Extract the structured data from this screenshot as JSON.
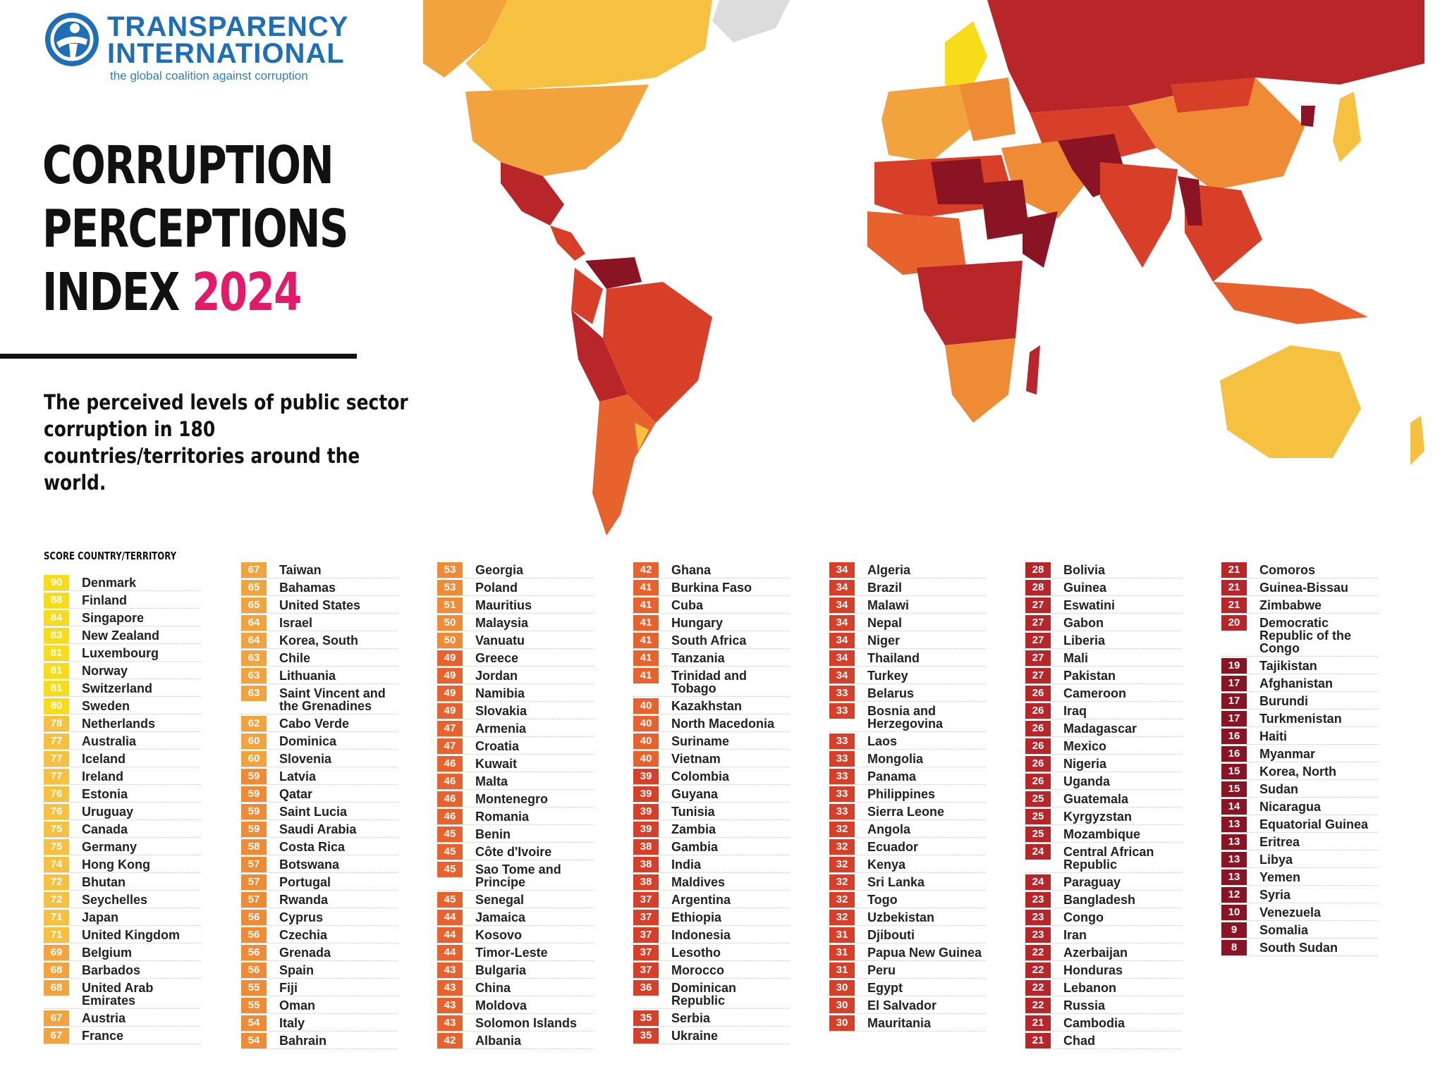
{
  "logo": {
    "line1": "TRANSPARENCY",
    "line2": "INTERNATIONAL",
    "tagline": "the global coalition against corruption"
  },
  "title": {
    "line1": "CORRUPTION",
    "line2": "PERCEPTIONS",
    "line3_prefix": "INDEX",
    "year": "2024"
  },
  "subtitle": "The perceived levels of public sector corruption in 180 countries/territories around the world.",
  "table_header": "SCORE  COUNTRY/TERRITORY",
  "colors": {
    "score_90_80": "#f7dc1a",
    "score_79_70": "#f6c140",
    "score_69_60": "#f3a33d",
    "score_59_50": "#ef8a35",
    "score_49_40": "#e8622e",
    "score_39_30": "#d83f29",
    "score_29_20": "#b8262a",
    "score_19_0": "#8a1424",
    "accent_year": "#e3196a",
    "logo_blue": "#1e6fb6"
  },
  "columns": [
    [
      {
        "score": "90",
        "name": "Denmark"
      },
      {
        "score": "88",
        "name": "Finland"
      },
      {
        "score": "84",
        "name": "Singapore"
      },
      {
        "score": "83",
        "name": "New Zealand"
      },
      {
        "score": "81",
        "name": "Luxembourg"
      },
      {
        "score": "81",
        "name": "Norway"
      },
      {
        "score": "81",
        "name": "Switzerland"
      },
      {
        "score": "80",
        "name": "Sweden"
      },
      {
        "score": "78",
        "name": "Netherlands"
      },
      {
        "score": "77",
        "name": "Australia"
      },
      {
        "score": "77",
        "name": "Iceland"
      },
      {
        "score": "77",
        "name": "Ireland"
      },
      {
        "score": "76",
        "name": "Estonia"
      },
      {
        "score": "76",
        "name": "Uruguay"
      },
      {
        "score": "75",
        "name": "Canada"
      },
      {
        "score": "75",
        "name": "Germany"
      },
      {
        "score": "74",
        "name": "Hong Kong"
      },
      {
        "score": "72",
        "name": "Bhutan"
      },
      {
        "score": "72",
        "name": "Seychelles"
      },
      {
        "score": "71",
        "name": "Japan"
      },
      {
        "score": "71",
        "name": "United Kingdom"
      },
      {
        "score": "69",
        "name": "Belgium"
      },
      {
        "score": "68",
        "name": "Barbados"
      },
      {
        "score": "68",
        "name": "United Arab Emirates"
      },
      {
        "score": "67",
        "name": "Austria"
      },
      {
        "score": "67",
        "name": "France"
      }
    ],
    [
      {
        "score": "67",
        "name": "Taiwan"
      },
      {
        "score": "65",
        "name": "Bahamas"
      },
      {
        "score": "65",
        "name": "United States"
      },
      {
        "score": "64",
        "name": "Israel"
      },
      {
        "score": "64",
        "name": "Korea, South"
      },
      {
        "score": "63",
        "name": "Chile"
      },
      {
        "score": "63",
        "name": "Lithuania"
      },
      {
        "score": "63",
        "name": "Saint Vincent and the Grenadines"
      },
      {
        "score": "62",
        "name": "Cabo Verde"
      },
      {
        "score": "60",
        "name": "Dominica"
      },
      {
        "score": "60",
        "name": "Slovenia"
      },
      {
        "score": "59",
        "name": "Latvia"
      },
      {
        "score": "59",
        "name": "Qatar"
      },
      {
        "score": "59",
        "name": "Saint Lucia"
      },
      {
        "score": "59",
        "name": "Saudi Arabia"
      },
      {
        "score": "58",
        "name": "Costa Rica"
      },
      {
        "score": "57",
        "name": "Botswana"
      },
      {
        "score": "57",
        "name": "Portugal"
      },
      {
        "score": "57",
        "name": "Rwanda"
      },
      {
        "score": "56",
        "name": "Cyprus"
      },
      {
        "score": "56",
        "name": "Czechia"
      },
      {
        "score": "56",
        "name": "Grenada"
      },
      {
        "score": "56",
        "name": "Spain"
      },
      {
        "score": "55",
        "name": "Fiji"
      },
      {
        "score": "55",
        "name": "Oman"
      },
      {
        "score": "54",
        "name": "Italy"
      },
      {
        "score": "54",
        "name": "Bahrain"
      }
    ],
    [
      {
        "score": "53",
        "name": "Georgia"
      },
      {
        "score": "53",
        "name": "Poland"
      },
      {
        "score": "51",
        "name": "Mauritius"
      },
      {
        "score": "50",
        "name": "Malaysia"
      },
      {
        "score": "50",
        "name": "Vanuatu"
      },
      {
        "score": "49",
        "name": "Greece"
      },
      {
        "score": "49",
        "name": "Jordan"
      },
      {
        "score": "49",
        "name": "Namibia"
      },
      {
        "score": "49",
        "name": "Slovakia"
      },
      {
        "score": "47",
        "name": "Armenia"
      },
      {
        "score": "47",
        "name": "Croatia"
      },
      {
        "score": "46",
        "name": "Kuwait"
      },
      {
        "score": "46",
        "name": "Malta"
      },
      {
        "score": "46",
        "name": "Montenegro"
      },
      {
        "score": "46",
        "name": "Romania"
      },
      {
        "score": "45",
        "name": "Benin"
      },
      {
        "score": "45",
        "name": "Côte d'Ivoire"
      },
      {
        "score": "45",
        "name": "Sao Tome and Principe"
      },
      {
        "score": "45",
        "name": "Senegal"
      },
      {
        "score": "44",
        "name": "Jamaica"
      },
      {
        "score": "44",
        "name": "Kosovo"
      },
      {
        "score": "44",
        "name": "Timor-Leste"
      },
      {
        "score": "43",
        "name": "Bulgaria"
      },
      {
        "score": "43",
        "name": "China"
      },
      {
        "score": "43",
        "name": "Moldova"
      },
      {
        "score": "43",
        "name": "Solomon Islands"
      },
      {
        "score": "42",
        "name": "Albania"
      }
    ],
    [
      {
        "score": "42",
        "name": "Ghana"
      },
      {
        "score": "41",
        "name": "Burkina Faso"
      },
      {
        "score": "41",
        "name": "Cuba"
      },
      {
        "score": "41",
        "name": "Hungary"
      },
      {
        "score": "41",
        "name": "South Africa"
      },
      {
        "score": "41",
        "name": "Tanzania"
      },
      {
        "score": "41",
        "name": "Trinidad and Tobago"
      },
      {
        "score": "40",
        "name": "Kazakhstan"
      },
      {
        "score": "40",
        "name": "North Macedonia"
      },
      {
        "score": "40",
        "name": "Suriname"
      },
      {
        "score": "40",
        "name": "Vietnam"
      },
      {
        "score": "39",
        "name": "Colombia"
      },
      {
        "score": "39",
        "name": "Guyana"
      },
      {
        "score": "39",
        "name": "Tunisia"
      },
      {
        "score": "39",
        "name": "Zambia"
      },
      {
        "score": "38",
        "name": "Gambia"
      },
      {
        "score": "38",
        "name": "India"
      },
      {
        "score": "38",
        "name": "Maldives"
      },
      {
        "score": "37",
        "name": "Argentina"
      },
      {
        "score": "37",
        "name": "Ethiopia"
      },
      {
        "score": "37",
        "name": "Indonesia"
      },
      {
        "score": "37",
        "name": "Lesotho"
      },
      {
        "score": "37",
        "name": "Morocco"
      },
      {
        "score": "36",
        "name": "Dominican Republic"
      },
      {
        "score": "35",
        "name": "Serbia"
      },
      {
        "score": "35",
        "name": "Ukraine"
      }
    ],
    [
      {
        "score": "34",
        "name": "Algeria"
      },
      {
        "score": "34",
        "name": "Brazil"
      },
      {
        "score": "34",
        "name": "Malawi"
      },
      {
        "score": "34",
        "name": "Nepal"
      },
      {
        "score": "34",
        "name": "Niger"
      },
      {
        "score": "34",
        "name": "Thailand"
      },
      {
        "score": "34",
        "name": "Turkey"
      },
      {
        "score": "33",
        "name": "Belarus"
      },
      {
        "score": "33",
        "name": "Bosnia and Herzegovina"
      },
      {
        "score": "33",
        "name": "Laos"
      },
      {
        "score": "33",
        "name": "Mongolia"
      },
      {
        "score": "33",
        "name": "Panama"
      },
      {
        "score": "33",
        "name": "Philippines"
      },
      {
        "score": "33",
        "name": "Sierra Leone"
      },
      {
        "score": "32",
        "name": "Angola"
      },
      {
        "score": "32",
        "name": "Ecuador"
      },
      {
        "score": "32",
        "name": "Kenya"
      },
      {
        "score": "32",
        "name": "Sri Lanka"
      },
      {
        "score": "32",
        "name": "Togo"
      },
      {
        "score": "32",
        "name": "Uzbekistan"
      },
      {
        "score": "31",
        "name": "Djibouti"
      },
      {
        "score": "31",
        "name": "Papua New Guinea"
      },
      {
        "score": "31",
        "name": "Peru"
      },
      {
        "score": "30",
        "name": "Egypt"
      },
      {
        "score": "30",
        "name": "El Salvador"
      },
      {
        "score": "30",
        "name": "Mauritania"
      }
    ],
    [
      {
        "score": "28",
        "name": "Bolivia"
      },
      {
        "score": "28",
        "name": "Guinea"
      },
      {
        "score": "27",
        "name": "Eswatini"
      },
      {
        "score": "27",
        "name": "Gabon"
      },
      {
        "score": "27",
        "name": "Liberia"
      },
      {
        "score": "27",
        "name": "Mali"
      },
      {
        "score": "27",
        "name": "Pakistan"
      },
      {
        "score": "26",
        "name": "Cameroon"
      },
      {
        "score": "26",
        "name": "Iraq"
      },
      {
        "score": "26",
        "name": "Madagascar"
      },
      {
        "score": "26",
        "name": "Mexico"
      },
      {
        "score": "26",
        "name": "Nigeria"
      },
      {
        "score": "26",
        "name": "Uganda"
      },
      {
        "score": "25",
        "name": "Guatemala"
      },
      {
        "score": "25",
        "name": "Kyrgyzstan"
      },
      {
        "score": "25",
        "name": "Mozambique"
      },
      {
        "score": "24",
        "name": "Central African Republic"
      },
      {
        "score": "24",
        "name": "Paraguay"
      },
      {
        "score": "23",
        "name": "Bangladesh"
      },
      {
        "score": "23",
        "name": "Congo"
      },
      {
        "score": "23",
        "name": "Iran"
      },
      {
        "score": "22",
        "name": "Azerbaijan"
      },
      {
        "score": "22",
        "name": "Honduras"
      },
      {
        "score": "22",
        "name": "Lebanon"
      },
      {
        "score": "22",
        "name": "Russia"
      },
      {
        "score": "21",
        "name": "Cambodia"
      },
      {
        "score": "21",
        "name": "Chad"
      }
    ],
    [
      {
        "score": "21",
        "name": "Comoros"
      },
      {
        "score": "21",
        "name": "Guinea-Bissau"
      },
      {
        "score": "21",
        "name": "Zimbabwe"
      },
      {
        "score": "20",
        "name": "Democratic Republic of the Congo"
      },
      {
        "score": "19",
        "name": "Tajikistan"
      },
      {
        "score": "17",
        "name": "Afghanistan"
      },
      {
        "score": "17",
        "name": "Burundi"
      },
      {
        "score": "17",
        "name": "Turkmenistan"
      },
      {
        "score": "16",
        "name": "Haiti"
      },
      {
        "score": "16",
        "name": "Myanmar"
      },
      {
        "score": "15",
        "name": "Korea, North"
      },
      {
        "score": "15",
        "name": "Sudan"
      },
      {
        "score": "14",
        "name": "Nicaragua"
      },
      {
        "score": "13",
        "name": "Equatorial Guinea"
      },
      {
        "score": "13",
        "name": "Eritrea"
      },
      {
        "score": "13",
        "name": "Libya"
      },
      {
        "score": "13",
        "name": "Yemen"
      },
      {
        "score": "12",
        "name": "Syria"
      },
      {
        "score": "10",
        "name": "Venezuela"
      },
      {
        "score": "9",
        "name": "Somalia"
      },
      {
        "score": "8",
        "name": "South Sudan"
      }
    ]
  ]
}
